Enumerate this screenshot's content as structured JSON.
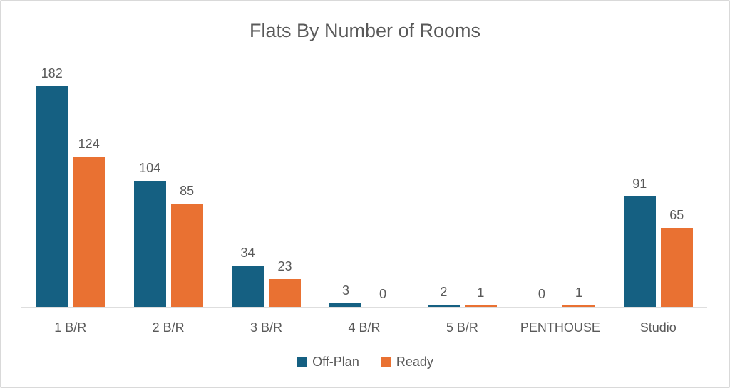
{
  "title": "Flats By Number of Rooms",
  "colors": {
    "off_plan": "#156082",
    "ready": "#E97132",
    "text": "#595959",
    "axis_line": "#DEDEDE",
    "card_border": "#D9D9D9",
    "background": "#FFFFFF"
  },
  "legend": {
    "items": [
      {
        "label": "Off-Plan",
        "color": "#156082"
      },
      {
        "label": "Ready",
        "color": "#E97132"
      }
    ],
    "position": "bottom"
  },
  "chart_data": {
    "type": "bar",
    "title": "Flats By Number of Rooms",
    "categories": [
      "1 B/R",
      "2 B/R",
      "3 B/R",
      "4 B/R",
      "5 B/R",
      "PENTHOUSE",
      "Studio"
    ],
    "series": [
      {
        "name": "Off-Plan",
        "color": "#156082",
        "values": [
          182,
          104,
          34,
          3,
          2,
          0,
          91
        ]
      },
      {
        "name": "Ready",
        "color": "#E97132",
        "values": [
          124,
          85,
          23,
          0,
          1,
          1,
          65
        ]
      }
    ],
    "data_labels": true,
    "legend_position": "bottom",
    "xlabel": "",
    "ylabel": "",
    "ylim": [
      0,
      190
    ],
    "grid": false,
    "axis_lines": [
      "bottom"
    ]
  }
}
